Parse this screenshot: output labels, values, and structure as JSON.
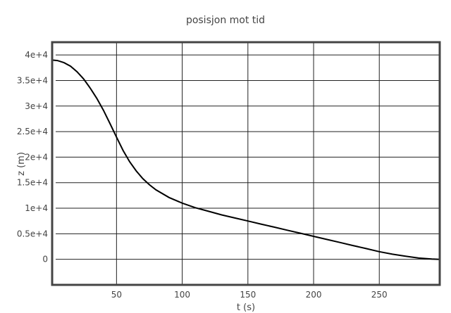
{
  "chart_data": {
    "type": "line",
    "title": "posisjon mot tid",
    "xlabel": "t (s)",
    "ylabel": "z (m)",
    "xlim": [
      1,
      296
    ],
    "ylim": [
      -5000,
      42500
    ],
    "x_ticks": [
      50,
      100,
      150,
      200,
      250
    ],
    "x_tick_labels": [
      "50",
      "100",
      "150",
      "200",
      "250"
    ],
    "y_ticks": [
      0,
      5000,
      10000,
      15000,
      20000,
      25000,
      30000,
      35000,
      40000
    ],
    "y_tick_labels": [
      "0",
      "0.5e+4",
      "1e+4",
      "1.5e+4",
      "2e+4",
      "2.5e+4",
      "3e+4",
      "3.5e+4",
      "4e+4"
    ],
    "grid": true,
    "colors": {
      "line": "#000000",
      "grid": "#222222",
      "frame": "#444444"
    },
    "series": [
      {
        "x": [
          1,
          5,
          10,
          15,
          20,
          25,
          30,
          35,
          40,
          45,
          50,
          55,
          60,
          65,
          70,
          75,
          80,
          90,
          100,
          110,
          120,
          130,
          140,
          150,
          160,
          170,
          180,
          190,
          200,
          210,
          220,
          230,
          240,
          250,
          260,
          270,
          280,
          290,
          296
        ],
        "y": [
          39000,
          38900,
          38500,
          37800,
          36700,
          35300,
          33500,
          31500,
          29200,
          26600,
          23900,
          21300,
          19100,
          17300,
          15800,
          14600,
          13600,
          12100,
          11000,
          10100,
          9400,
          8700,
          8100,
          7500,
          6900,
          6300,
          5700,
          5100,
          4500,
          3900,
          3300,
          2700,
          2100,
          1500,
          1000,
          600,
          250,
          50,
          0
        ]
      }
    ]
  }
}
